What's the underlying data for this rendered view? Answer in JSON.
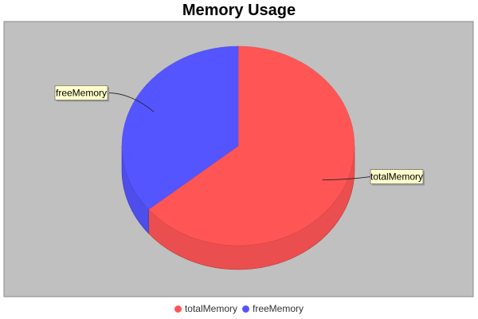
{
  "chart_data": {
    "type": "pie",
    "title": "Memory Usage",
    "slices": [
      {
        "label": "totalMemory",
        "value": 64,
        "color": "#FF5555"
      },
      {
        "label": "freeMemory",
        "value": 36,
        "color": "#5555FF"
      }
    ],
    "three_d": true,
    "plot_background": "#C0C0C0",
    "legend_position": "bottom"
  }
}
